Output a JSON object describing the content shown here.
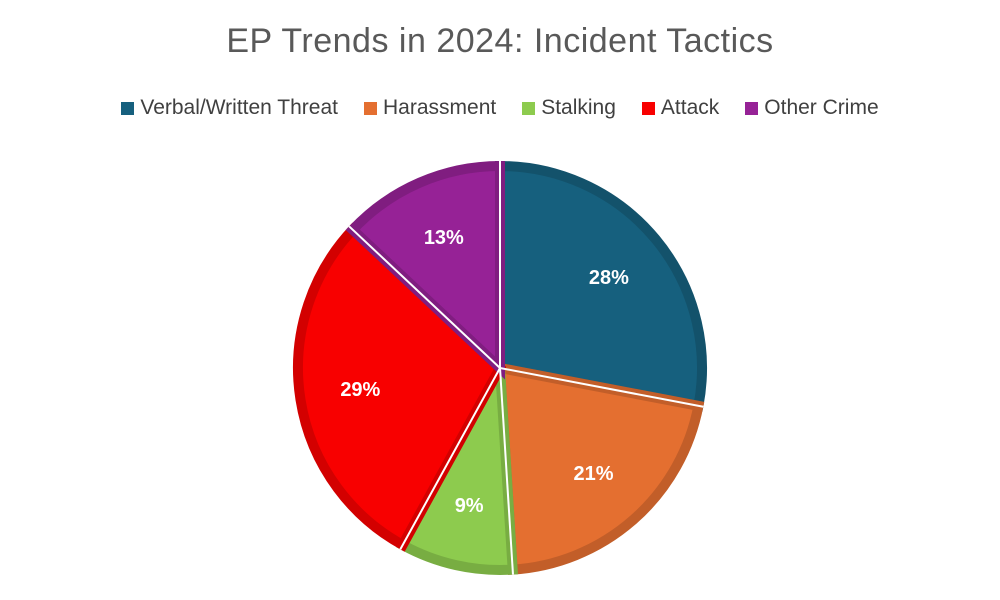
{
  "chart_data": {
    "type": "pie",
    "title": "EP Trends in 2024: Incident Tactics",
    "legend_position": "top",
    "slices": [
      {
        "name": "Verbal/Written Threat",
        "value": 28,
        "label": "28%",
        "color": "#16607E"
      },
      {
        "name": "Harassment",
        "value": 21,
        "label": "21%",
        "color": "#E46F30"
      },
      {
        "name": "Stalking",
        "value": 9,
        "label": "9%",
        "color": "#8DCB4E"
      },
      {
        "name": "Attack",
        "value": 29,
        "label": "29%",
        "color": "#F80000"
      },
      {
        "name": "Other Crime",
        "value": 13,
        "label": "13%",
        "color": "#962296"
      }
    ]
  }
}
